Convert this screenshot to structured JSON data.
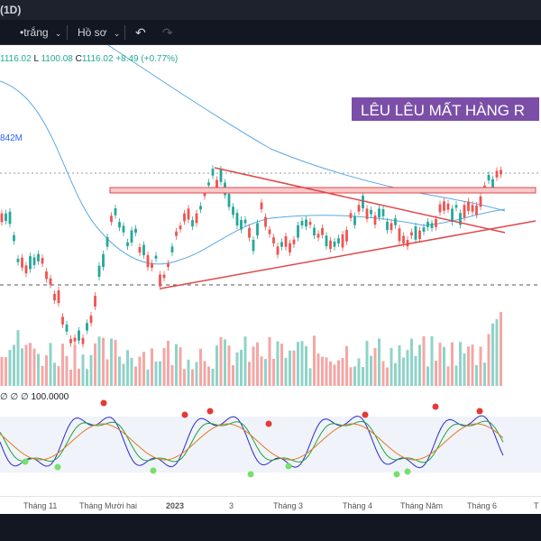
{
  "header": {
    "title": "(1D)"
  },
  "toolbar": {
    "theme_label": "•trắng",
    "profile_label": "Hồ sơ",
    "undo_icon": "undo-icon",
    "redo_icon": "redo-icon"
  },
  "legend": {
    "high": "1116.02",
    "low_key": "L",
    "low": "1100.08",
    "close_key": "C",
    "close": "1116.02",
    "change": "+8.49 (+0.77%)",
    "volume": "842M",
    "oscillator": "100.0000"
  },
  "annotation": {
    "text": "LÊU LÊU MẤT HÀNG R"
  },
  "xaxis": {
    "labels": [
      "Tháng 11",
      "Tháng Mười hai",
      "2023",
      "3",
      "Tháng 3",
      "Tháng 4",
      "Tháng Năm",
      "Tháng 6",
      "T"
    ]
  },
  "colors": {
    "up": "#26a69a",
    "down": "#ef5350",
    "ma": "#5aa9e6",
    "trendline": "#e0474c",
    "banner": "#7b4ea8"
  }
}
